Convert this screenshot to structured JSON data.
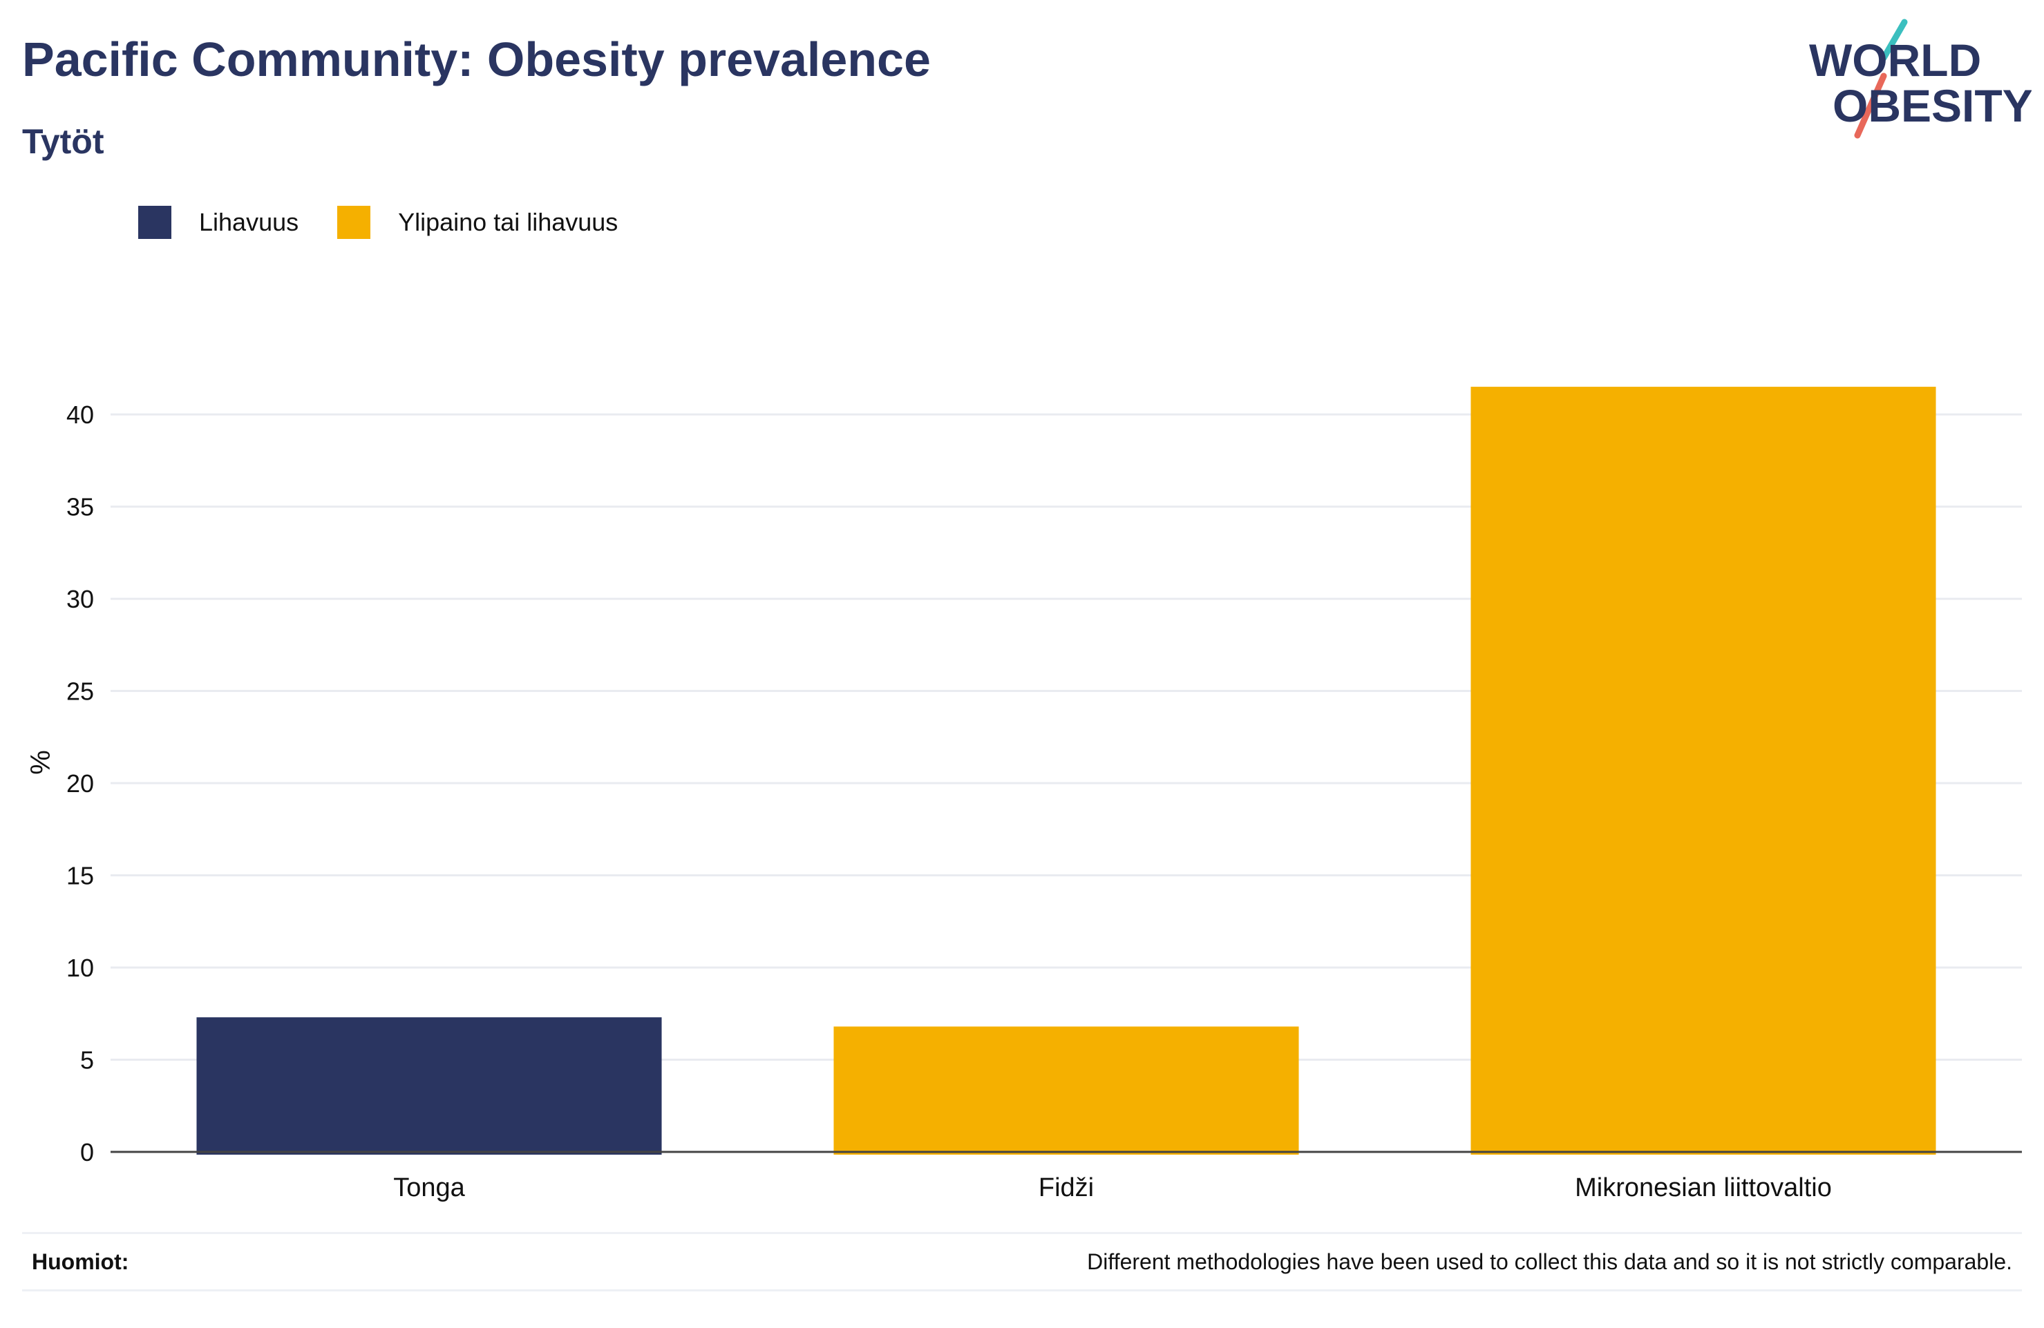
{
  "header": {
    "title": "Pacific Community: Obesity prevalence",
    "subtitle": "Tytöt"
  },
  "logo": {
    "line1": "WORLD",
    "line2": "OBESITY",
    "colors": {
      "text": "#2a3561",
      "accent_top": "#3bbfbf",
      "accent_bottom": "#e8685a"
    }
  },
  "colors": {
    "obesity": "#2a3561",
    "overweight": "#f5b000",
    "grid": "#e9ebf0",
    "axis": "#444444"
  },
  "chart_data": {
    "type": "bar",
    "ylabel": "%",
    "ylim": [
      0,
      43
    ],
    "yticks": [
      0,
      5,
      10,
      15,
      20,
      25,
      30,
      35,
      40
    ],
    "grid": true,
    "legend_position": "top-left",
    "legend": [
      {
        "name": "Lihavuus",
        "color": "#2a3561"
      },
      {
        "name": "Ylipaino tai lihavuus",
        "color": "#f5b000"
      }
    ],
    "categories": [
      "Tonga",
      "Fidži",
      "Mikronesian liittovaltio"
    ],
    "bars": [
      {
        "category": "Tonga",
        "value": 7.3,
        "series": "Lihavuus"
      },
      {
        "category": "Fidži",
        "value": 6.8,
        "series": "Ylipaino tai lihavuus"
      },
      {
        "category": "Mikronesian liittovaltio",
        "value": 41.5,
        "series": "Ylipaino tai lihavuus"
      }
    ]
  },
  "footer": {
    "label": "Huomiot:",
    "note": "Different methodologies have been used to collect this data and so it is not strictly comparable."
  }
}
